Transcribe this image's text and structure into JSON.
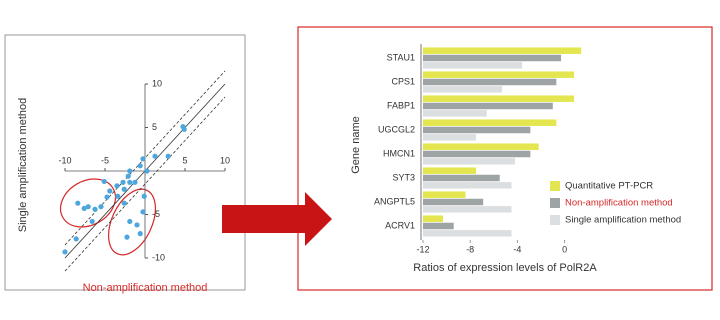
{
  "chart_data": [
    {
      "type": "scatter",
      "xlabel": "Non-amplification method",
      "ylabel": "Single amplification method",
      "color": "#4da6dc",
      "x": [
        4.75,
        4.9,
        2.9,
        1.25,
        -0.25,
        0.25,
        -0.6,
        -1.9,
        -2.1,
        -1.25,
        -1.9,
        -2.75,
        -3.5,
        -2.6,
        -3.4,
        -2.6,
        -0.1,
        -0.25,
        -1.9,
        -1,
        -2.25,
        -0.6,
        -4.75,
        -5.5,
        -6.25,
        -6.6,
        -7.1,
        -7.6,
        -8.4,
        -8.6,
        -10,
        -4.4,
        -5.1
      ],
      "values": [
        5.1,
        4.8,
        1.7,
        1.7,
        1.4,
        0,
        0.6,
        0,
        -0.6,
        -1.3,
        -1.3,
        -1.3,
        -1.7,
        -2.1,
        -2.9,
        -3.7,
        -2.9,
        -4.7,
        -5.8,
        -6.2,
        -7.6,
        -7.2,
        -3,
        -4.1,
        -4.4,
        -5.8,
        -4.1,
        -4.3,
        -3.7,
        -7.8,
        -9.3,
        -2.3,
        -1.2
      ],
      "xlim": [
        -10,
        10
      ],
      "ylim": [
        -10,
        10
      ],
      "xticks": [
        -10,
        -5,
        5,
        10
      ],
      "yticks": [
        -10,
        -5,
        5,
        10
      ]
    },
    {
      "type": "bar",
      "orientation": "horizontal",
      "xlabel": "Ratios of expression levels of PolR2A",
      "ylabel": "Gene name",
      "categories": [
        "STAU1",
        "CPS1",
        "FABP1",
        "UGCGL2",
        "HMCN1",
        "SYT3",
        "ANGPTL5",
        "ACRV1"
      ],
      "series": [
        {
          "name": "Quantitative PT-PCR",
          "color": "#e3e64f",
          "values": [
            1.4,
            0.8,
            0.8,
            -0.7,
            -2.2,
            -7.5,
            -8.4,
            -10.3
          ]
        },
        {
          "name": "Non-amplification method",
          "color": "#9ea3a6",
          "values": [
            -0.3,
            -0.7,
            -1.0,
            -2.9,
            -2.9,
            -5.5,
            -6.9,
            -9.4
          ]
        },
        {
          "name": "Single amplification method",
          "color": "#dcdfe1",
          "values": [
            -3.6,
            -5.3,
            -6.6,
            -7.5,
            -4.2,
            -4.5,
            -4.5,
            -4.5
          ]
        }
      ],
      "xlim": [
        -12,
        1.5
      ],
      "xticks": [
        -12,
        -8,
        -4,
        0
      ],
      "legend": "lower right"
    }
  ]
}
